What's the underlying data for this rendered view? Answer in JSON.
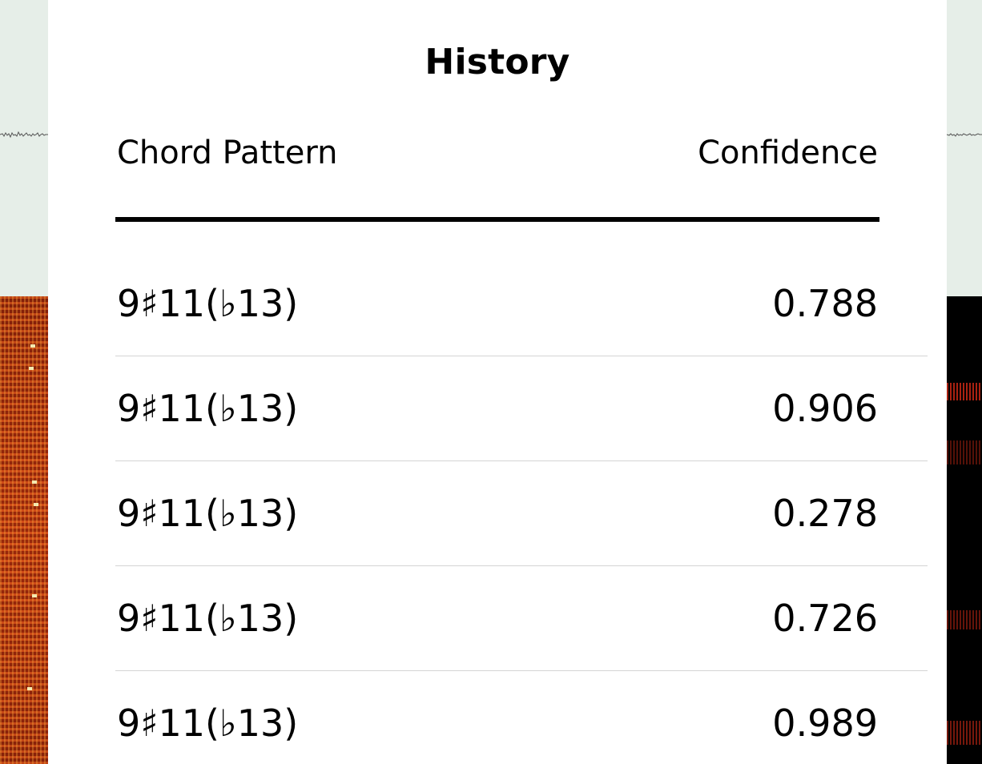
{
  "history": {
    "title": "History",
    "columns": {
      "pattern": "Chord Pattern",
      "confidence": "Confidence"
    },
    "rows": [
      {
        "pattern": "9♯11(♭13)",
        "confidence": "0.788"
      },
      {
        "pattern": "9♯11(♭13)",
        "confidence": "0.906"
      },
      {
        "pattern": "9♯11(♭13)",
        "confidence": "0.278"
      },
      {
        "pattern": "9♯11(♭13)",
        "confidence": "0.726"
      },
      {
        "pattern": "9♯11(♭13)",
        "confidence": "0.989"
      }
    ]
  },
  "colors": {
    "waveform_background": "#e6eee8",
    "spectrogram_hot": "#b8350f",
    "spectrogram_background": "#000000",
    "panel_background": "#ffffff",
    "row_divider": "#d4d4d4"
  }
}
